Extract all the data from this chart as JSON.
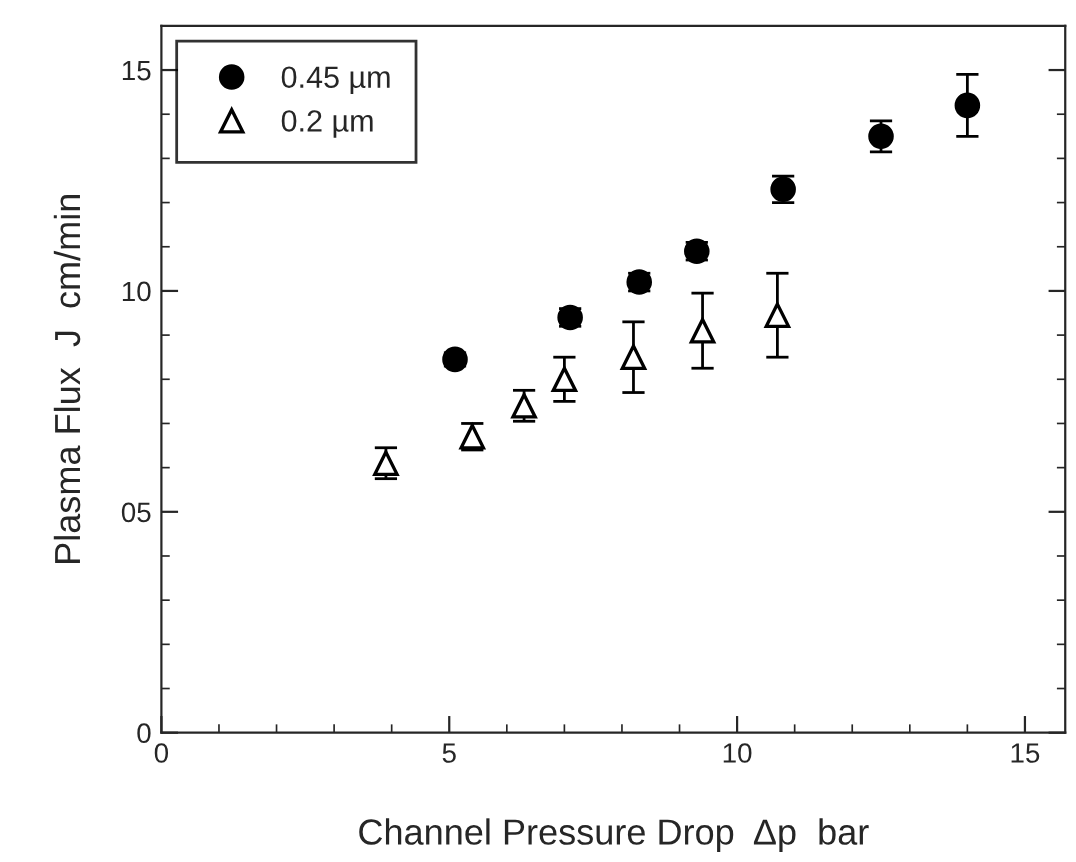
{
  "chart_data": {
    "type": "scatter",
    "xlabel": "Channel Pressure Drop  Δp  bar",
    "ylabel": "Plasma Flux  J  cm/min",
    "xlim": [
      0,
      15.7
    ],
    "ylim": [
      0,
      16
    ],
    "xticks": [
      0,
      5,
      10,
      15
    ],
    "yticks": [
      0,
      {
        "value": 5,
        "label": "05"
      },
      10,
      15
    ],
    "legend": "top left",
    "grid": false,
    "series": [
      {
        "name": "0.45 µm",
        "color": "#000000",
        "marker": "circle",
        "x": [
          5.1,
          7.1,
          8.3,
          9.3,
          10.8,
          12.5,
          14.0
        ],
        "values": [
          8.45,
          9.4,
          10.2,
          10.9,
          12.3,
          13.5,
          14.2
        ],
        "errors": [
          0.15,
          0.2,
          0.2,
          0.2,
          0.3,
          0.35,
          0.7
        ]
      },
      {
        "name": "0.2 µm",
        "color": "#000000",
        "marker": "triangle",
        "x": [
          3.9,
          5.4,
          6.3,
          7.0,
          8.2,
          9.4,
          10.7
        ],
        "values": [
          6.1,
          6.7,
          7.4,
          8.0,
          8.5,
          9.1,
          9.45
        ],
        "errors": [
          0.35,
          0.3,
          0.35,
          0.5,
          0.8,
          0.85,
          0.95
        ]
      }
    ]
  }
}
